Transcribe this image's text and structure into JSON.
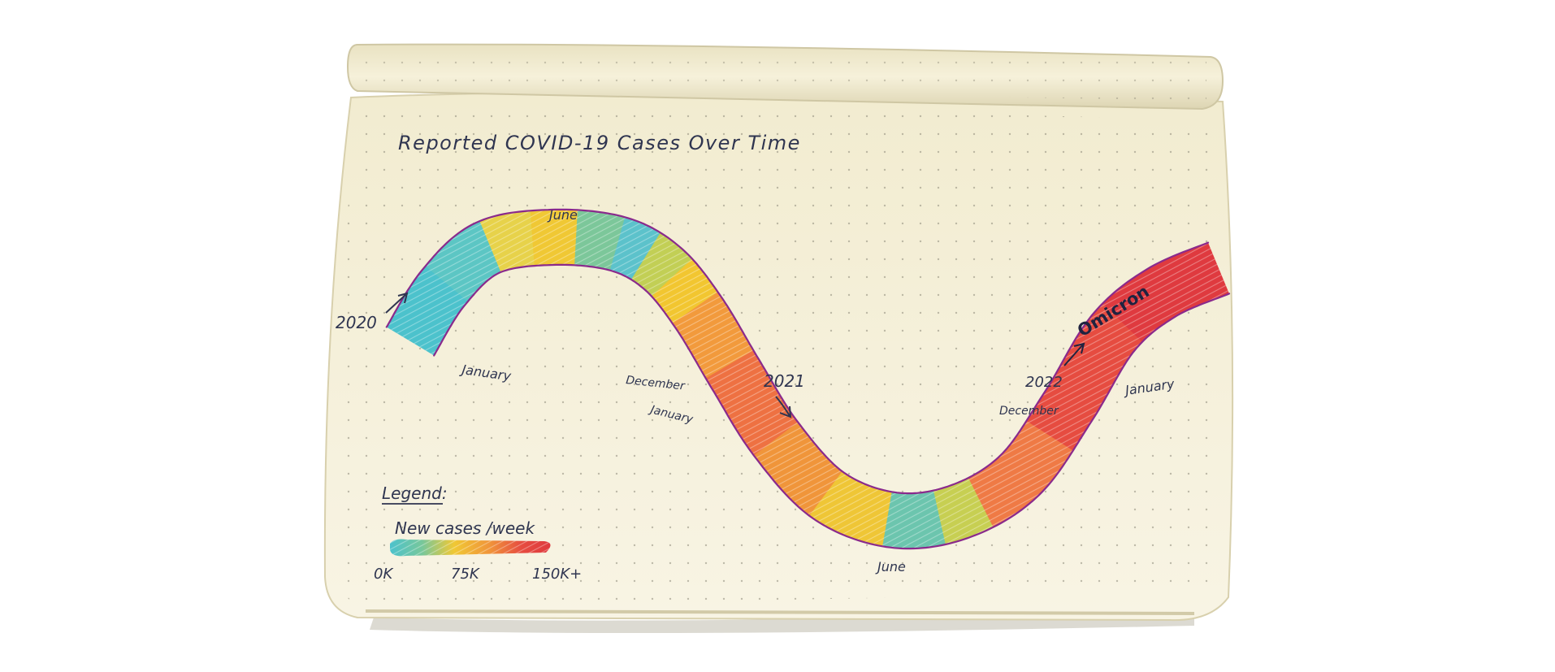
{
  "chart_data": {
    "type": "area",
    "title": "Reported COVID-19 Cases Over Time",
    "color_metric": "New cases /week",
    "x": [
      "January 2020",
      "June 2020",
      "December 2020",
      "January 2021",
      "June 2021",
      "December 2021",
      "January 2022"
    ],
    "y_cases_per_week_k": [
      0,
      20,
      110,
      130,
      45,
      150,
      150
    ],
    "segments": [
      {
        "start": 0.0,
        "end": 0.07,
        "value_k": 0,
        "color": "#4cc2cc"
      },
      {
        "start": 0.07,
        "end": 0.13,
        "value_k": 10,
        "color": "#5cc6c4"
      },
      {
        "start": 0.13,
        "end": 0.17,
        "value_k": 45,
        "color": "#e7d24a"
      },
      {
        "start": 0.17,
        "end": 0.21,
        "value_k": 60,
        "color": "#f0c834"
      },
      {
        "start": 0.21,
        "end": 0.25,
        "value_k": 25,
        "color": "#7cc79a"
      },
      {
        "start": 0.25,
        "end": 0.29,
        "value_k": 5,
        "color": "#5cc2cb"
      },
      {
        "start": 0.29,
        "end": 0.33,
        "value_k": 40,
        "color": "#c2cf55"
      },
      {
        "start": 0.33,
        "end": 0.37,
        "value_k": 60,
        "color": "#f2c630"
      },
      {
        "start": 0.37,
        "end": 0.43,
        "value_k": 95,
        "color": "#f29a3c"
      },
      {
        "start": 0.43,
        "end": 0.5,
        "value_k": 120,
        "color": "#ee7142"
      },
      {
        "start": 0.5,
        "end": 0.56,
        "value_k": 100,
        "color": "#f0953a"
      },
      {
        "start": 0.56,
        "end": 0.62,
        "value_k": 60,
        "color": "#efc636"
      },
      {
        "start": 0.62,
        "end": 0.67,
        "value_k": 20,
        "color": "#6cc5ae"
      },
      {
        "start": 0.67,
        "end": 0.71,
        "value_k": 45,
        "color": "#c7cf52"
      },
      {
        "start": 0.71,
        "end": 0.79,
        "value_k": 115,
        "color": "#ef7a45"
      },
      {
        "start": 0.79,
        "end": 0.89,
        "value_k": 145,
        "color": "#e64c40"
      },
      {
        "start": 0.89,
        "end": 1.0,
        "value_k": 150,
        "color": "#df3a3f"
      }
    ],
    "annotations": [
      "Omicron"
    ],
    "legend": {
      "heading": "Legend:",
      "label": "New cases /week",
      "ticks": [
        "0K",
        "75K",
        "150K+"
      ],
      "gradient": [
        "#4cc2cc",
        "#77c79b",
        "#f0c834",
        "#f0953a",
        "#e64c40",
        "#df3a3f"
      ]
    },
    "grid": true,
    "legend_placement": "bottom-left"
  },
  "labels": {
    "title": "Reported COVID-19 Cases Over Time",
    "year_2020": "2020",
    "january_2020": "January",
    "june_2020": "June",
    "december_2020": "December",
    "year_2021": "2021",
    "january_2021": "January",
    "june_2021": "June",
    "year_2022": "2022",
    "december_2021": "December",
    "january_2022": "January",
    "omicron": "Omicron",
    "legend_heading": "Legend:",
    "legend_label": "New cases /week",
    "tick_0": "0K",
    "tick_75": "75K",
    "tick_150": "150K+"
  },
  "colors": {
    "paper": "#f6f1dc",
    "paper_edge": "#e8e1c4",
    "ink": "#2f3550",
    "outline": "#8a2a8c"
  }
}
